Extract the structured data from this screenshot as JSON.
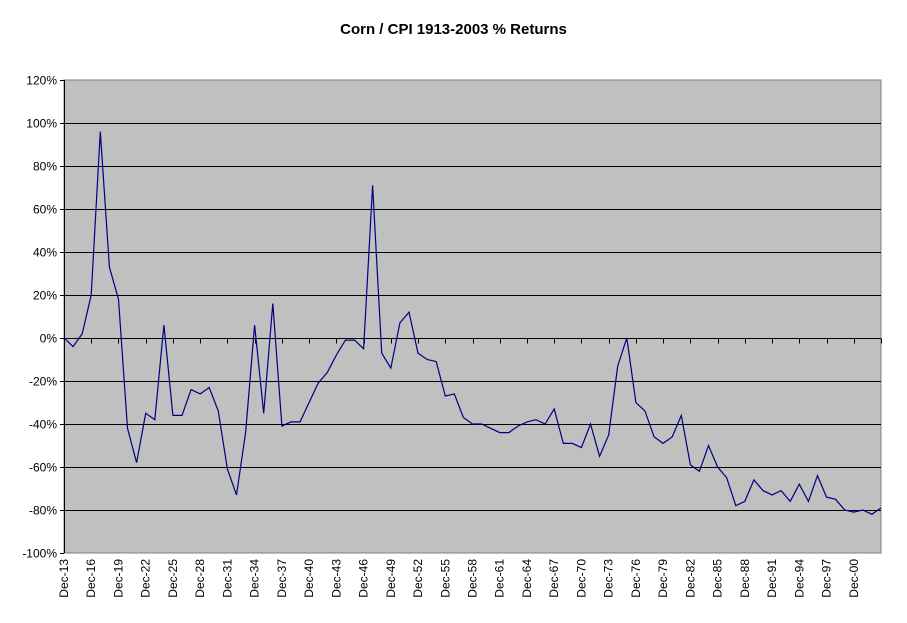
{
  "chart_data": {
    "type": "line",
    "title": "Corn / CPI 1913-2003  % Returns",
    "xlabel": "",
    "ylabel": "",
    "ylim": [
      -100,
      120
    ],
    "y_ticks": [
      "120%",
      "100%",
      "80%",
      "60%",
      "40%",
      "20%",
      "0%",
      "-20%",
      "-40%",
      "-60%",
      "-80%",
      "-100%"
    ],
    "y_tick_values": [
      120,
      100,
      80,
      60,
      40,
      20,
      0,
      -20,
      -40,
      -60,
      -80,
      -100
    ],
    "x_tick_labels": [
      "Dec-13",
      "Dec-16",
      "Dec-19",
      "Dec-22",
      "Dec-25",
      "Dec-28",
      "Dec-31",
      "Dec-34",
      "Dec-37",
      "Dec-40",
      "Dec-43",
      "Dec-46",
      "Dec-49",
      "Dec-52",
      "Dec-55",
      "Dec-58",
      "Dec-61",
      "Dec-64",
      "Dec-67",
      "Dec-70",
      "Dec-73",
      "Dec-76",
      "Dec-79",
      "Dec-82",
      "Dec-85",
      "Dec-88",
      "Dec-91",
      "Dec-94",
      "Dec-97",
      "Dec-00"
    ],
    "grid": true,
    "legend": "none",
    "colors": {
      "plot_bg": "#C0C0C0",
      "line": "#000080",
      "grid": "#000000",
      "border": "#808080"
    },
    "x": [
      1913,
      1914,
      1915,
      1916,
      1917,
      1918,
      1919,
      1920,
      1921,
      1922,
      1923,
      1924,
      1925,
      1926,
      1927,
      1928,
      1929,
      1930,
      1931,
      1932,
      1933,
      1934,
      1935,
      1936,
      1937,
      1938,
      1939,
      1940,
      1941,
      1942,
      1943,
      1944,
      1945,
      1946,
      1947,
      1948,
      1949,
      1950,
      1951,
      1952,
      1953,
      1954,
      1955,
      1956,
      1957,
      1958,
      1959,
      1960,
      1961,
      1962,
      1963,
      1964,
      1965,
      1966,
      1967,
      1968,
      1969,
      1970,
      1971,
      1972,
      1973,
      1974,
      1975,
      1976,
      1977,
      1978,
      1979,
      1980,
      1981,
      1982,
      1983,
      1984,
      1985,
      1986,
      1987,
      1988,
      1989,
      1990,
      1991,
      1992,
      1993,
      1994,
      1995,
      1996,
      1997,
      1998,
      1999,
      2000,
      2001,
      2002,
      2003
    ],
    "series": [
      {
        "name": "Corn / CPI % Returns",
        "values": [
          0,
          -4,
          2,
          20,
          96,
          33,
          18,
          -42,
          -58,
          -35,
          -38,
          6,
          -36,
          -36,
          -24,
          -26,
          -23,
          -34,
          -61,
          -73,
          -44,
          6,
          -35,
          16,
          -41,
          -39,
          -39,
          -30,
          -21,
          -16,
          -8,
          -1,
          -1,
          -5,
          71,
          -7,
          -14,
          7,
          12,
          -7,
          -10,
          -11,
          -27,
          -26,
          -37,
          -40,
          -40,
          -42,
          -44,
          -44,
          -41,
          -39,
          -38,
          -40,
          -33,
          -49,
          -49,
          -51,
          -40,
          -55,
          -45,
          -13,
          0,
          -30,
          -34,
          -46,
          -49,
          -46,
          -36,
          -59,
          -62,
          -50,
          -60,
          -65,
          -78,
          -76,
          -66,
          -71,
          -73,
          -71,
          -76,
          -68,
          -76,
          -64,
          -74,
          -75,
          -80,
          -81,
          -80,
          -82,
          -79
        ]
      }
    ]
  }
}
